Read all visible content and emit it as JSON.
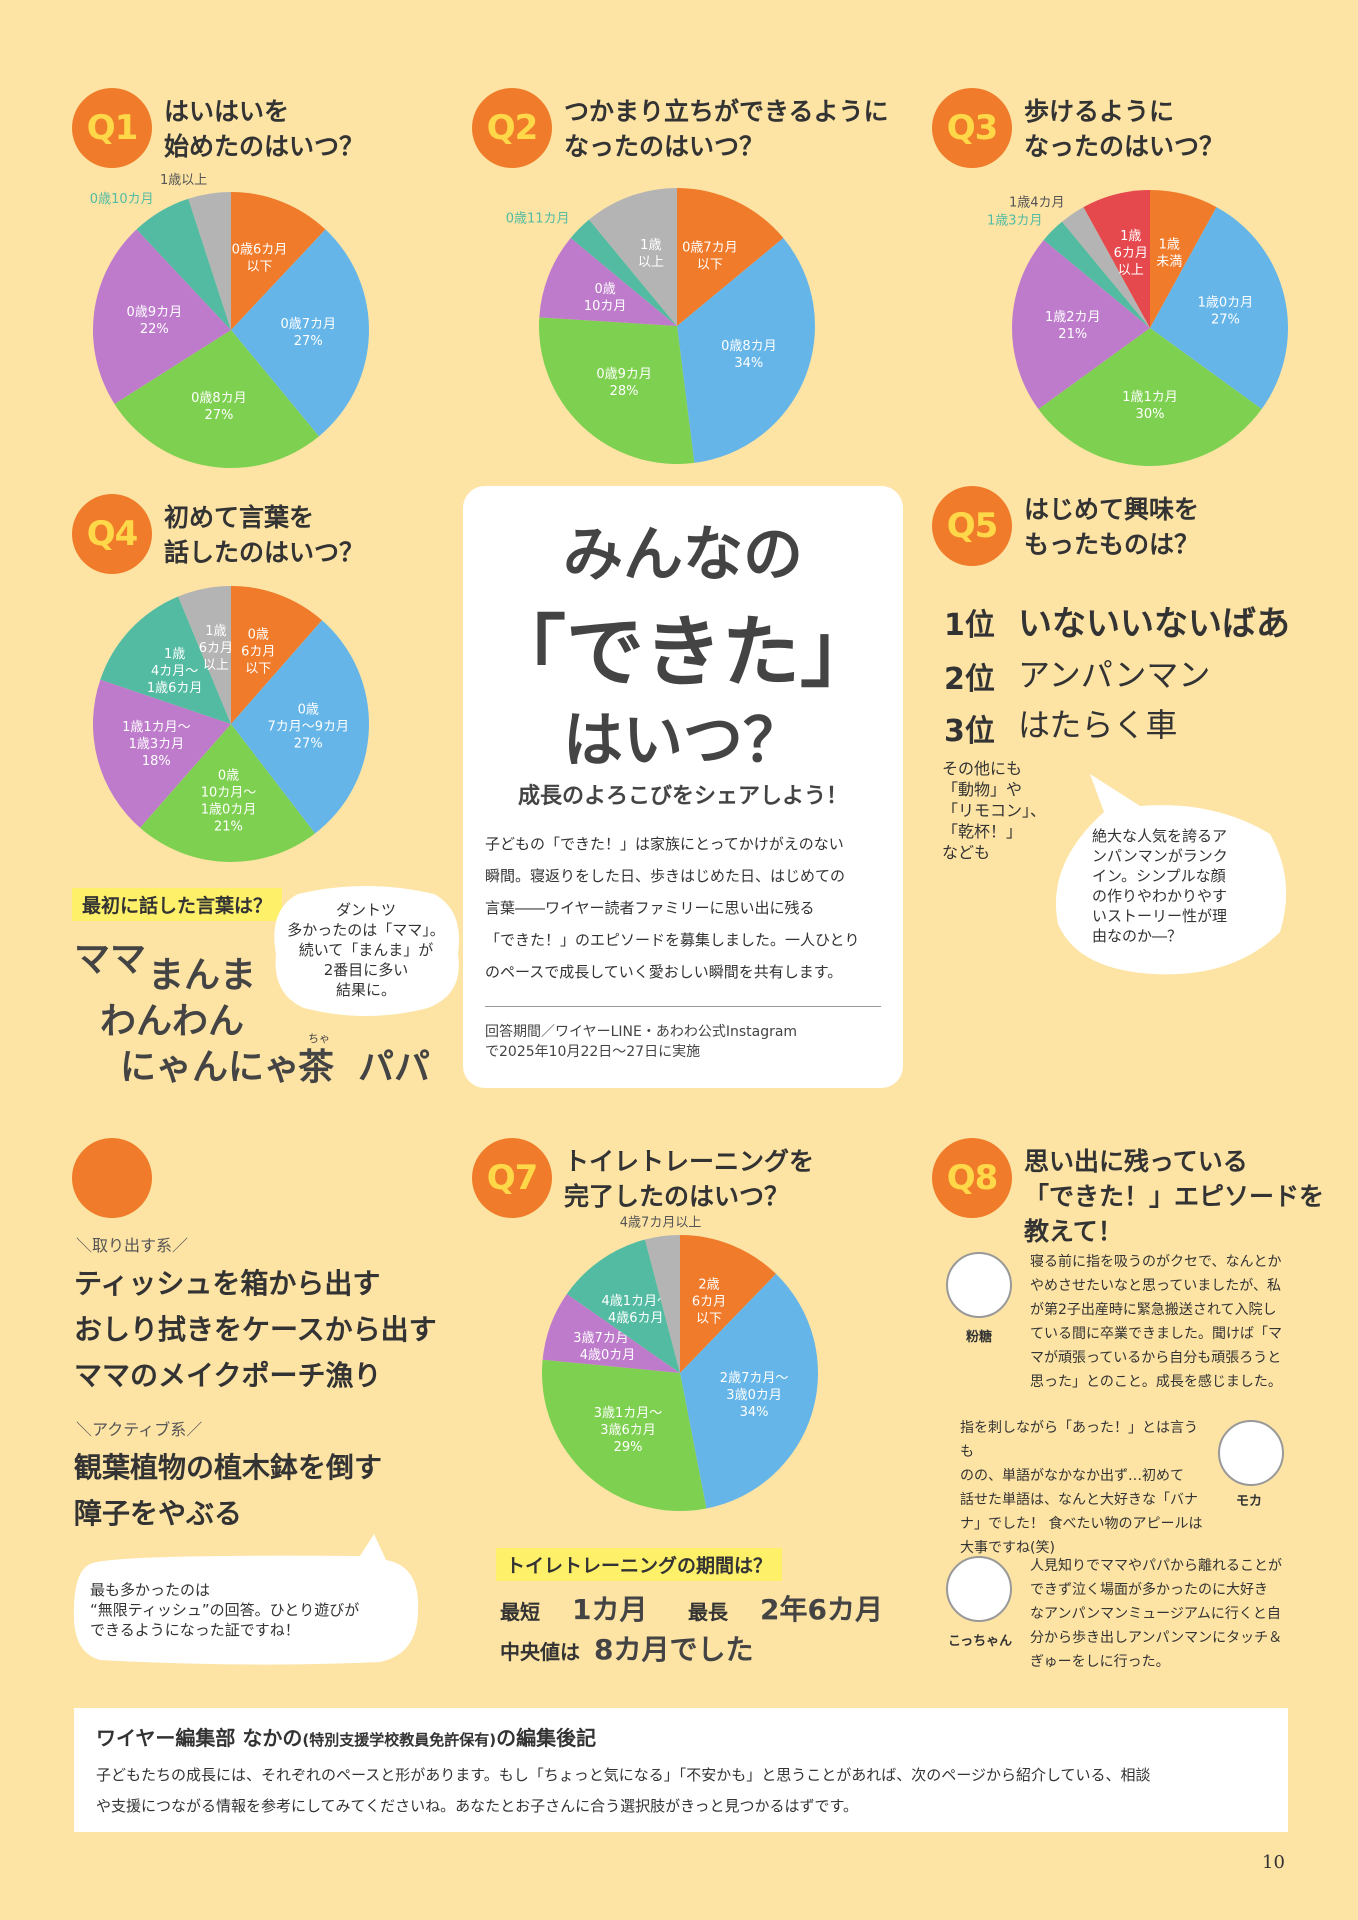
{
  "colors": {
    "background": "#FDE4A5",
    "badge": "#F07B2A",
    "badge_text": "#FFD84A",
    "highlight": "#FFF06A",
    "orange": "#F07B2A",
    "blue": "#66B5E8",
    "green": "#7ED150",
    "purple": "#BE7BCC",
    "teal": "#52BBA2",
    "gray": "#B4B4B4",
    "red": "#E5484D"
  },
  "q1": {
    "badge": "Q1",
    "title": "はいはいを\n始めたのはいつ？"
  },
  "q2": {
    "badge": "Q2",
    "title": "つかまり立ちができるように\nなったのはいつ？"
  },
  "q3": {
    "badge": "Q3",
    "title": "歩けるように\nなったのはいつ？"
  },
  "q4": {
    "badge": "Q4",
    "title": "初めて言葉を\n話したのはいつ？"
  },
  "q5": {
    "badge": "Q5",
    "title": "はじめて興味を\nもったものは？"
  },
  "q6": {
    "cat1": "＼取り出す系／",
    "items1": [
      "ティッシュを箱から出す",
      "おしり拭きをケースから出す",
      "ママのメイクポーチ漁り"
    ],
    "cat2": "＼アクティブ系／",
    "items2": [
      "観葉植物の植木鉢を倒す",
      "障子をやぶる"
    ],
    "bubble": "最も多かったのは\n“無限ティッシュ”の回答。ひとり遊びが\nできるようになった証ですね！"
  },
  "q7": {
    "badge": "Q7",
    "title": "トイレトレーニングを\n完了したのはいつ？"
  },
  "q8": {
    "badge": "Q8",
    "title": "思い出に残っている\n「できた！」エピソードを\n教えて！"
  },
  "chart_data": [
    {
      "id": "q1",
      "type": "pie",
      "slices": [
        {
          "label": "0歳6カ月\n以下",
          "value": 12,
          "color": "orange"
        },
        {
          "label": "0歳7カ月\n27%",
          "value": 27,
          "color": "blue"
        },
        {
          "label": "0歳8カ月\n27%",
          "value": 27,
          "color": "green"
        },
        {
          "label": "0歳9カ月\n22%",
          "value": 22,
          "color": "purple"
        },
        {
          "label": "0歳10カ月",
          "value": 7,
          "color": "teal",
          "outside": true
        },
        {
          "label": "1歳以上",
          "value": 5,
          "color": "gray",
          "outside": true
        }
      ]
    },
    {
      "id": "q2",
      "type": "pie",
      "slices": [
        {
          "label": "0歳7カ月\n以下",
          "value": 14,
          "color": "orange"
        },
        {
          "label": "0歳8カ月\n34%",
          "value": 34,
          "color": "blue"
        },
        {
          "label": "0歳9カ月\n28%",
          "value": 28,
          "color": "green"
        },
        {
          "label": "0歳\n10カ月",
          "value": 10,
          "color": "purple"
        },
        {
          "label": "0歳11カ月",
          "value": 3,
          "color": "teal",
          "outside": true
        },
        {
          "label": "1歳\n以上",
          "value": 11,
          "color": "gray"
        }
      ]
    },
    {
      "id": "q3",
      "type": "pie",
      "slices": [
        {
          "label": "1歳\n未満",
          "value": 8,
          "color": "orange"
        },
        {
          "label": "1歳0カ月\n27%",
          "value": 27,
          "color": "blue"
        },
        {
          "label": "1歳1カ月\n30%",
          "value": 30,
          "color": "green"
        },
        {
          "label": "1歳2カ月\n21%",
          "value": 21,
          "color": "purple"
        },
        {
          "label": "1歳3カ月",
          "value": 3,
          "color": "teal",
          "outside": true
        },
        {
          "label": "1歳4カ月",
          "value": 3,
          "color": "gray",
          "outside": true
        },
        {
          "label": "1歳\n6カ月\n以上",
          "value": 8,
          "color": "red"
        }
      ]
    },
    {
      "id": "q4",
      "type": "pie",
      "slices": [
        {
          "label": "0歳\n6カ月\n以下",
          "value": 11,
          "color": "orange"
        },
        {
          "label": "0歳\n7カ月～9カ月\n27%",
          "value": 27,
          "color": "blue"
        },
        {
          "label": "0歳\n10カ月～\n1歳0カ月\n21%",
          "value": 21,
          "color": "green"
        },
        {
          "label": "1歳1カ月～\n1歳3カ月\n18%",
          "value": 18,
          "color": "purple"
        },
        {
          "label": "1歳\n4カ月～\n1歳6カ月",
          "value": 13,
          "color": "teal"
        },
        {
          "label": "1歳\n6カ月\n以上",
          "value": 6,
          "color": "gray"
        }
      ]
    },
    {
      "id": "q7",
      "type": "pie",
      "slices": [
        {
          "label": "2歳\n6カ月\n以下",
          "value": 12,
          "color": "orange"
        },
        {
          "label": "2歳7カ月～\n3歳0カ月\n34%",
          "value": 34,
          "color": "blue"
        },
        {
          "label": "3歳1カ月～\n3歳6カ月\n29%",
          "value": 29,
          "color": "green"
        },
        {
          "label": "3歳7カ月～\n4歳0カ月",
          "value": 8,
          "color": "purple"
        },
        {
          "label": "4歳1カ月～\n4歳6カ月",
          "value": 11,
          "color": "teal"
        },
        {
          "label": "4歳7カ月以上",
          "value": 4,
          "color": "gray",
          "outside": true
        }
      ]
    }
  ],
  "feature": {
    "title_line1": "みんなの",
    "title_line2": "「できた」",
    "title_line3": "はいつ？",
    "subtitle": "成長のよろこびをシェアしよう！",
    "body": "子どもの「できた！」は家族にとってかけがえのない\n瞬間。寝返りをした日、歩きはじめた日、はじめての\n言葉――ワイヤー読者ファミリーに思い出に残る\n「できた！」のエピソードを募集しました。一人ひとり\nのペースで成長していく愛おしい瞬間を共有します。",
    "period": "回答期間／ワイヤーLINE・あわわ公式Instagram\nで2025年10月22日～27日に実施"
  },
  "first_words": {
    "tag": "最初に話した言葉は？",
    "words": [
      "ママ",
      "まんま",
      "わんわん",
      "にゃんにゃ",
      "茶",
      "パパ"
    ],
    "ruby": "ちゃ",
    "bubble": "ダントツ\n多かったのは「ママ」。\n続いて「まんま」が\n2番目に多い\n結果に。"
  },
  "q5_ranks": [
    {
      "rank": "1位",
      "item": "いないいないばあ"
    },
    {
      "rank": "2位",
      "item": "アンパンマン"
    },
    {
      "rank": "3位",
      "item": "はたらく車"
    }
  ],
  "q5_others": "その他にも\n「動物」や\n「リモコン」、\n「乾杯！」\nなども",
  "q5_bubble": "絶大な人気を誇るア\nンパンマンがランク\nイン。シンプルな顔\nの作りやわかりやす\nいストーリー性が理\n由なのか―？",
  "toilet": {
    "tag": "トイレトレーニングの期間は？",
    "shortest_label": "最短",
    "shortest_value": "1カ月",
    "longest_label": "最長",
    "longest_value": "2年6カ月",
    "median_label": "中央値は",
    "median_value": "8カ月でした"
  },
  "episodes": [
    {
      "name": "粉糖",
      "text": "寝る前に指を吸うのがクセで、なんとか\nやめさせたいなと思っていましたが、私\nが第2子出産時に緊急搬送されて入院し\nている間に卒業できました。聞けば「マ\nマが頑張っているから自分も頑張ろうと\n思った」とのこと。成長を感じました。"
    },
    {
      "name": "モカ",
      "text": "指を刺しながら「あった！」とは言うも\nのの、単語がなかなか出ず…初めて\n話せた単語は、なんと大好きな「バナ\nナ」でした！ 食べたい物のアピールは\n大事ですね(笑)"
    },
    {
      "name": "こっちゃん",
      "text": "人見知りでママやパパから離れることが\nできず泣く場面が多かったのに大好き\nなアンパンマンミュージアムに行くと自\n分から歩き出しアンパンマンにタッチ＆\nぎゅーをしに行った。"
    }
  ],
  "editor": {
    "title_main": "ワイヤー編集部 なかの",
    "title_paren": "(特別支援学校教員免許保有)",
    "title_tail": "の編集後記",
    "body": "子どもたちの成長には、それぞれのペースと形があります。もし「ちょっと気になる」「不安かも」と思うことがあれば、次のページから紹介している、相談\nや支援につながる情報を参考にしてみてくださいね。あなたとお子さんに合う選択肢がきっと見つかるはずです。"
  },
  "page_number": "10"
}
